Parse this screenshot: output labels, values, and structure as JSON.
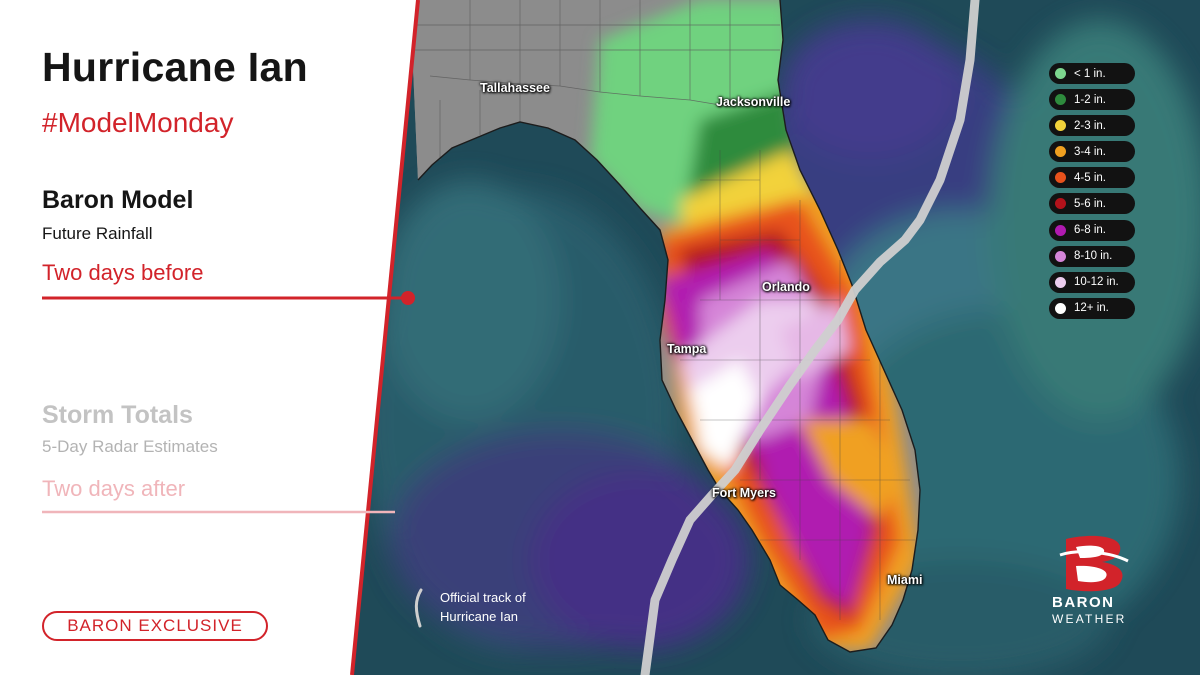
{
  "title": "Hurricane Ian",
  "hashtag": "#ModelMonday",
  "sections": [
    {
      "title": "Baron Model",
      "subtitle": "Future Rainfall",
      "when": "Two days before",
      "active": true
    },
    {
      "title": "Storm Totals",
      "subtitle": "5-Day Radar Estimates",
      "when": "Two days after",
      "active": false
    }
  ],
  "badge": "BARON EXCLUSIVE",
  "cities": [
    "Tallahassee",
    "Jacksonville",
    "Orlando",
    "Tampa",
    "Fort Myers",
    "Miami"
  ],
  "legend": [
    {
      "label": "< 1 in.",
      "color": "#7dd68e"
    },
    {
      "label": "1-2 in.",
      "color": "#2e8b3d"
    },
    {
      "label": "2-3 in.",
      "color": "#f2d23a"
    },
    {
      "label": "3-4 in.",
      "color": "#f0a020"
    },
    {
      "label": "4-5 in.",
      "color": "#e8521c"
    },
    {
      "label": "5-6 in.",
      "color": "#b3121b"
    },
    {
      "label": "6-8 in.",
      "color": "#b01ab0"
    },
    {
      "label": "8-10 in.",
      "color": "#d585d8"
    },
    {
      "label": "10-12 in.",
      "color": "#eccdee"
    },
    {
      "label": "12+ in.",
      "color": "#ffffff"
    }
  ],
  "track_note": {
    "line1": "Official track of",
    "line2": "Hurricane Ian"
  },
  "logo": {
    "word": "BARON",
    "sub": "WEATHER",
    "icon": "baron-b-logo"
  },
  "accent": "#d2232a"
}
